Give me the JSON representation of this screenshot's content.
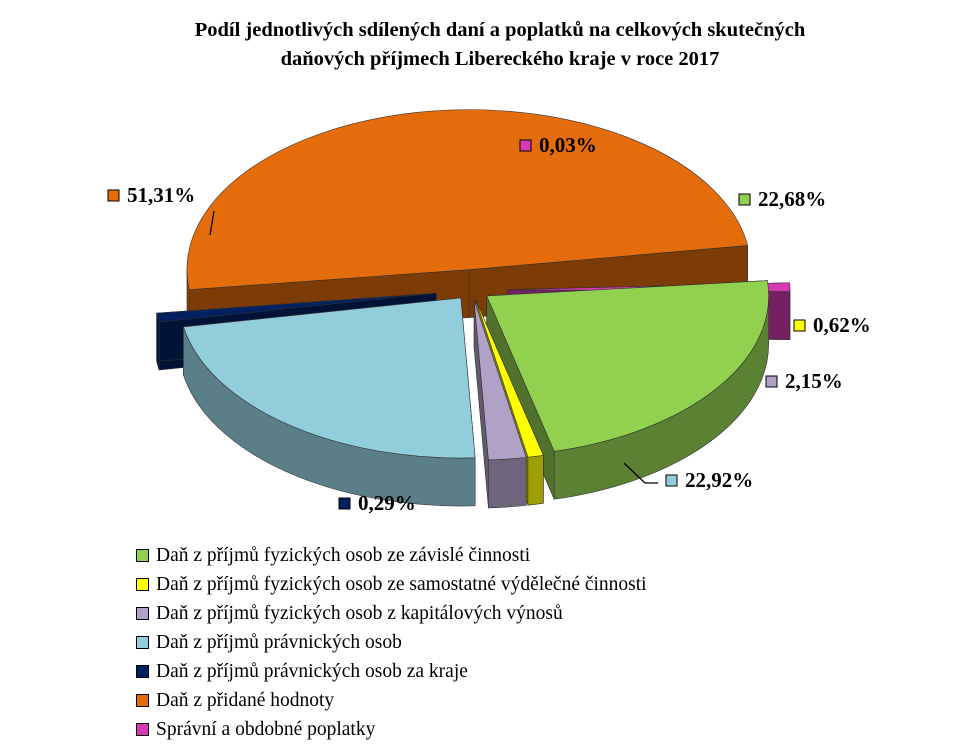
{
  "chart_data": {
    "type": "pie",
    "title_lines": [
      "Podíl jednotlivých sdílených daní a poplatků na celkových skutečných",
      "daňových příjmech Libereckého kraje v roce 2017"
    ],
    "slices": [
      {
        "name": "Daň z příjmů fyzických osob ze závislé činnosti",
        "value": 22.68,
        "label": "22,68%",
        "color": "#92d050"
      },
      {
        "name": "Daň z příjmů fyzických osob ze samostatné výdělečné činnosti",
        "value": 0.62,
        "label": "0,62%",
        "color": "#ffff00"
      },
      {
        "name": "Daň z příjmů fyzických osob z kapitálových výnosů",
        "value": 2.15,
        "label": "2,15%",
        "color": "#b2a1c7"
      },
      {
        "name": "Daň z příjmů právnických osob",
        "value": 22.92,
        "label": "22,92%",
        "color": "#92cddc"
      },
      {
        "name": "Daň z příjmů právnických osob za kraje",
        "value": 0.29,
        "label": "0,29%",
        "color": "#002060"
      },
      {
        "name": "Daň z přidané hodnoty",
        "value": 51.31,
        "label": "51,31%",
        "color": "#e46c0a"
      },
      {
        "name": "Správní a obdobné poplatky",
        "value": 0.03,
        "label": "0,03%",
        "color": "#d63ab5"
      }
    ],
    "legend_position": "bottom",
    "exploded": true,
    "three_d": true
  }
}
